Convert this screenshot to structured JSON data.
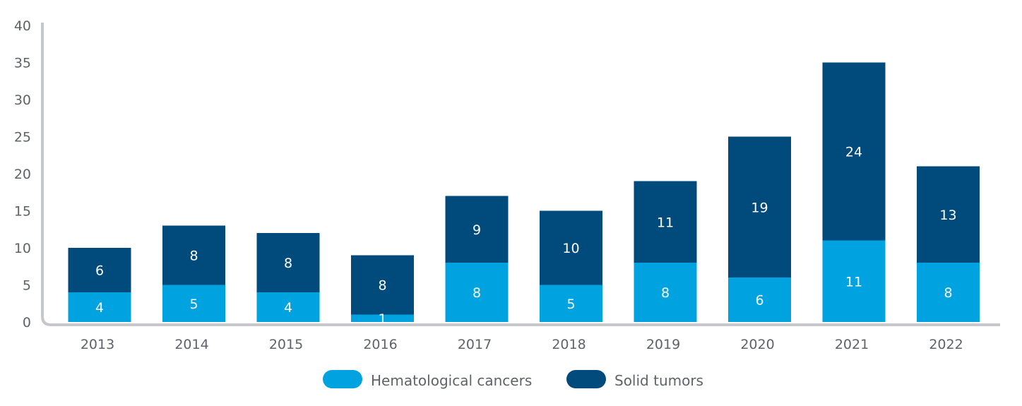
{
  "chart_data": {
    "type": "bar",
    "stacked": true,
    "categories": [
      "2013",
      "2014",
      "2015",
      "2016",
      "2017",
      "2018",
      "2019",
      "2020",
      "2021",
      "2022"
    ],
    "series": [
      {
        "name": "Hematological cancers",
        "color": "#00a3e0",
        "values": [
          4,
          5,
          4,
          1,
          8,
          5,
          8,
          6,
          11,
          8
        ]
      },
      {
        "name": "Solid tumors",
        "color": "#004a7c",
        "values": [
          6,
          8,
          8,
          8,
          9,
          10,
          11,
          19,
          24,
          13
        ]
      }
    ],
    "ylim": [
      0,
      40
    ],
    "yticks": [
      0,
      5,
      10,
      15,
      20,
      25,
      30,
      35,
      40
    ],
    "grid": false,
    "legend": "bottom-center"
  }
}
